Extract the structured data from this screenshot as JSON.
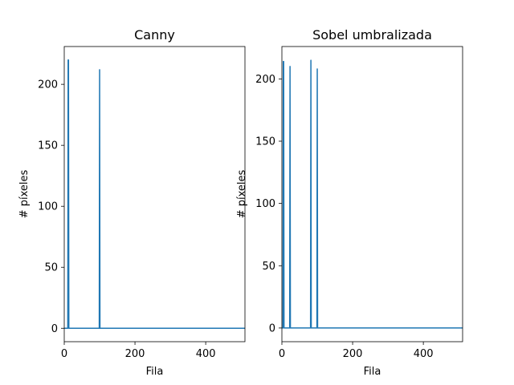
{
  "chart_data": [
    {
      "type": "line",
      "title": "Canny",
      "xlabel": "Fila",
      "ylabel": "# píxeles",
      "xlim": [
        0,
        511
      ],
      "ylim": [
        -11,
        231
      ],
      "xticks": [
        0,
        200,
        400
      ],
      "yticks": [
        0,
        50,
        100,
        150,
        200
      ],
      "grid": false,
      "series": [
        {
          "color": "#1f77b4",
          "x": [
            0,
            10,
            11,
            12,
            13,
            99,
            100,
            101,
            511
          ],
          "y": [
            0,
            0,
            220,
            220,
            0,
            0,
            212,
            0,
            0
          ]
        }
      ]
    },
    {
      "type": "line",
      "title": "Sobel umbralizada",
      "xlabel": "Fila",
      "ylabel": "# píxeles",
      "xlim": [
        0,
        511
      ],
      "ylim": [
        -11,
        226
      ],
      "xticks": [
        0,
        200,
        400
      ],
      "yticks": [
        0,
        50,
        100,
        150,
        200
      ],
      "grid": false,
      "series": [
        {
          "color": "#1f77b4",
          "x": [
            0,
            3,
            4,
            5,
            6,
            22,
            23,
            24,
            81,
            82,
            83,
            99,
            100,
            101,
            511
          ],
          "y": [
            0,
            0,
            214,
            214,
            0,
            0,
            210,
            0,
            0,
            215,
            0,
            0,
            208,
            0,
            0
          ]
        }
      ]
    }
  ]
}
